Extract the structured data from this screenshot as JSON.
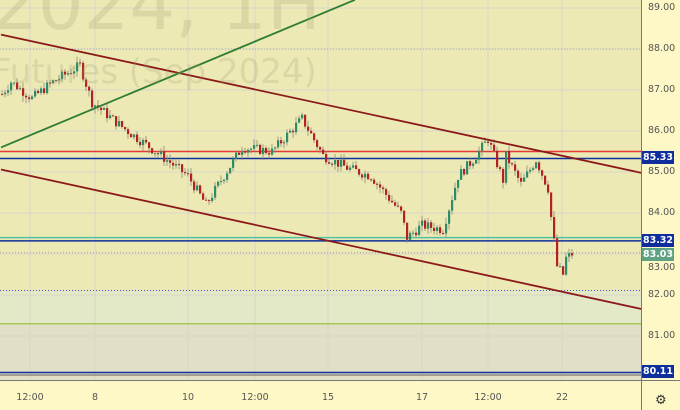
{
  "watermark": {
    "line1": "2024, 1H",
    "line2": "Futures (Sep 2024)"
  },
  "colors": {
    "background": "#ede9b4",
    "axis_bg": "#fdf8c6",
    "up": "#2e8b6a",
    "down": "#b22222",
    "trend_red": "#8b1a1a",
    "trend_green": "#2e7d32",
    "level_blue": "#0d2e9c",
    "level_red": "#e53935",
    "last_price": "#5fa384"
  },
  "chart_data": {
    "type": "candlestick",
    "ylim": [
      79.7,
      89.2
    ],
    "y_ticks": [
      "89.00",
      "88.00",
      "87.00",
      "86.00",
      "85.00",
      "84.00",
      "83.00",
      "82.00",
      "81.00"
    ],
    "x_ticks": [
      "12:00",
      "8",
      "10",
      "12:00",
      "15",
      "17",
      "12:00",
      "22"
    ],
    "price_path": [
      [
        0,
        86.9
      ],
      [
        3,
        87.2
      ],
      [
        10,
        86.8
      ],
      [
        17,
        87.2
      ],
      [
        26,
        87.6
      ],
      [
        30,
        86.7
      ],
      [
        40,
        86.1
      ],
      [
        53,
        85.4
      ],
      [
        62,
        84.9
      ],
      [
        68,
        84.2
      ],
      [
        73,
        84.8
      ],
      [
        80,
        85.6
      ],
      [
        90,
        85.5
      ],
      [
        100,
        86.3
      ],
      [
        107,
        85.4
      ],
      [
        115,
        85.1
      ],
      [
        123,
        84.9
      ],
      [
        133,
        84.0
      ],
      [
        135,
        83.4
      ],
      [
        140,
        83.7
      ],
      [
        147,
        83.6
      ],
      [
        152,
        84.9
      ],
      [
        157,
        85.3
      ],
      [
        162,
        85.8
      ],
      [
        167,
        84.8
      ],
      [
        168,
        85.4
      ],
      [
        173,
        84.7
      ],
      [
        178,
        85.3
      ],
      [
        182,
        84.6
      ],
      [
        183,
        83.9
      ],
      [
        185,
        82.7
      ],
      [
        187,
        82.5
      ],
      [
        188,
        82.9
      ],
      [
        190,
        83.0
      ]
    ],
    "horizontal_levels": [
      {
        "price": 85.5,
        "color": "#e53935"
      },
      {
        "price": 85.33,
        "color": "#0d2e9c",
        "label": "85.33"
      },
      {
        "price": 83.4,
        "color": "#4fc3a1"
      },
      {
        "price": 83.32,
        "color": "#0d2e9c",
        "label": "83.32"
      },
      {
        "price": 83.03,
        "color": "#999999",
        "dotted": true,
        "label": "83.03"
      },
      {
        "price": 88.0,
        "color": "#aaaaaa",
        "dotted": true
      },
      {
        "price": 82.11,
        "color": "#3a4cd6",
        "dotted": true
      },
      {
        "price": 81.3,
        "color": "#a7c957"
      },
      {
        "price": 80.11,
        "color": "#0d2e9c",
        "label": "80.11"
      },
      {
        "price": 80.05,
        "color": "#888888"
      }
    ],
    "trendlines": [
      {
        "from": [
          0,
          88.35
        ],
        "to": [
          214,
          84.97
        ],
        "color": "#8b1a1a"
      },
      {
        "from": [
          0,
          85.06
        ],
        "to": [
          214,
          81.65
        ],
        "color": "#8b1a1a"
      },
      {
        "from": [
          0,
          85.6
        ],
        "to": [
          118,
          89.2
        ],
        "color": "#2e7d32"
      }
    ]
  }
}
